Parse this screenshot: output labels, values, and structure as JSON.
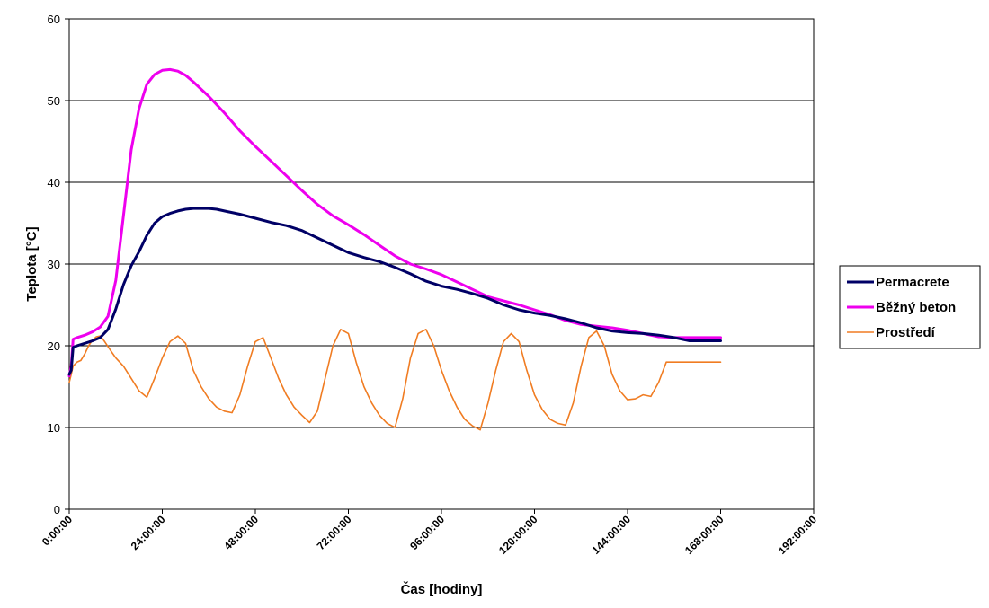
{
  "chart_data": {
    "type": "line",
    "title": "",
    "xlabel": "Čas [hodiny]",
    "ylabel": "Teplota [°C]",
    "xlim": [
      0,
      192
    ],
    "ylim": [
      0,
      60
    ],
    "x_ticks": [
      0,
      24,
      48,
      72,
      96,
      120,
      144,
      168,
      192
    ],
    "x_tick_labels": [
      "0:00:00",
      "24:00:00",
      "48:00:00",
      "72:00:00",
      "96:00:00",
      "120:00:00",
      "144:00:00",
      "168:00:00",
      "192:00:00"
    ],
    "y_ticks": [
      0,
      10,
      20,
      30,
      40,
      50,
      60
    ],
    "y_tick_labels": [
      "0",
      "10",
      "20",
      "30",
      "40",
      "50",
      "60"
    ],
    "grid": "horizontal",
    "legend_position": "right",
    "series": [
      {
        "name": "Permacrete",
        "color": "#000066",
        "x": [
          0,
          0.5,
          1,
          2,
          4,
          6,
          8,
          10,
          12,
          14,
          16,
          18,
          20,
          22,
          24,
          26,
          28,
          30,
          32,
          34,
          36,
          38,
          40,
          44,
          48,
          52,
          56,
          60,
          64,
          68,
          72,
          76,
          80,
          84,
          88,
          92,
          96,
          100,
          104,
          108,
          112,
          116,
          120,
          124,
          128,
          132,
          136,
          140,
          144,
          148,
          152,
          156,
          160,
          164,
          168
        ],
        "values": [
          16.5,
          17,
          19.8,
          20,
          20.3,
          20.6,
          21,
          22,
          24.5,
          27.5,
          29.8,
          31.5,
          33.5,
          35,
          35.8,
          36.2,
          36.5,
          36.7,
          36.8,
          36.8,
          36.8,
          36.7,
          36.5,
          36.1,
          35.6,
          35.1,
          34.7,
          34.1,
          33.2,
          32.3,
          31.4,
          30.8,
          30.3,
          29.6,
          28.8,
          27.9,
          27.3,
          26.9,
          26.4,
          25.8,
          25.0,
          24.4,
          24.0,
          23.7,
          23.3,
          22.8,
          22.2,
          21.8,
          21.6,
          21.5,
          21.3,
          21.0,
          20.6,
          20.6,
          20.6
        ]
      },
      {
        "name": "Běžný beton",
        "color": "#ee00ee",
        "x": [
          0,
          0.5,
          1,
          2,
          4,
          6,
          8,
          10,
          12,
          14,
          16,
          18,
          20,
          22,
          24,
          26,
          28,
          30,
          32,
          36,
          40,
          44,
          48,
          52,
          56,
          60,
          64,
          68,
          72,
          76,
          80,
          84,
          88,
          92,
          96,
          100,
          104,
          108,
          112,
          116,
          120,
          124,
          128,
          132,
          136,
          140,
          144,
          148,
          152,
          156,
          160,
          164,
          168
        ],
        "values": [
          16.3,
          17.5,
          20.8,
          21,
          21.3,
          21.7,
          22.3,
          23.6,
          28,
          36,
          44,
          49,
          52,
          53.2,
          53.7,
          53.8,
          53.6,
          53.1,
          52.3,
          50.5,
          48.5,
          46.3,
          44.4,
          42.6,
          40.8,
          39.0,
          37.3,
          35.9,
          34.8,
          33.6,
          32.3,
          31.0,
          30.0,
          29.4,
          28.7,
          27.8,
          26.9,
          26.0,
          25.5,
          25.0,
          24.4,
          23.8,
          23.1,
          22.6,
          22.4,
          22.2,
          21.9,
          21.5,
          21.1,
          21.0,
          21.0,
          21.0,
          21.0
        ]
      },
      {
        "name": "Prostředí",
        "color": "#f07c22",
        "x": [
          0,
          0.5,
          1,
          2,
          3,
          4,
          5,
          6,
          7,
          8,
          9,
          10,
          11,
          12,
          14,
          16,
          18,
          20,
          22,
          24,
          26,
          28,
          30,
          32,
          34,
          36,
          38,
          40,
          42,
          44,
          46,
          48,
          50,
          52,
          54,
          56,
          58,
          60,
          62,
          64,
          66,
          68,
          70,
          72,
          74,
          76,
          78,
          80,
          82,
          84,
          86,
          88,
          90,
          92,
          94,
          96,
          98,
          100,
          102,
          104,
          106,
          108,
          110,
          112,
          114,
          116,
          118,
          120,
          122,
          124,
          126,
          128,
          130,
          132,
          134,
          136,
          138,
          140,
          142,
          144,
          146,
          148,
          150,
          152,
          154,
          156,
          158,
          160,
          162,
          164,
          166,
          168
        ],
        "values": [
          15.5,
          16.5,
          17.5,
          18,
          18.2,
          19,
          20,
          20.7,
          21.1,
          21.2,
          20.6,
          19.9,
          19.2,
          18.5,
          17.5,
          16.0,
          14.5,
          13.7,
          16.0,
          18.5,
          20.5,
          21.2,
          20.3,
          17.0,
          15.0,
          13.5,
          12.5,
          12.0,
          11.8,
          14.0,
          17.5,
          20.5,
          21.0,
          18.5,
          16.0,
          14.0,
          12.5,
          11.5,
          10.6,
          12.0,
          16.0,
          20.0,
          22.0,
          21.5,
          18.0,
          15.0,
          13.0,
          11.5,
          10.5,
          10.0,
          13.5,
          18.5,
          21.5,
          22.0,
          20.0,
          17.0,
          14.5,
          12.5,
          11.0,
          10.2,
          9.7,
          13.0,
          17.0,
          20.5,
          21.5,
          20.5,
          17.0,
          14.0,
          12.2,
          11.0,
          10.5,
          10.3,
          13.0,
          17.5,
          21.0,
          21.8,
          20.0,
          16.5,
          14.5,
          13.4,
          13.5,
          14.0,
          13.8,
          15.5,
          18.0,
          18.0,
          18.0,
          18.0,
          18.0,
          18.0,
          18.0,
          18.0
        ]
      }
    ]
  }
}
